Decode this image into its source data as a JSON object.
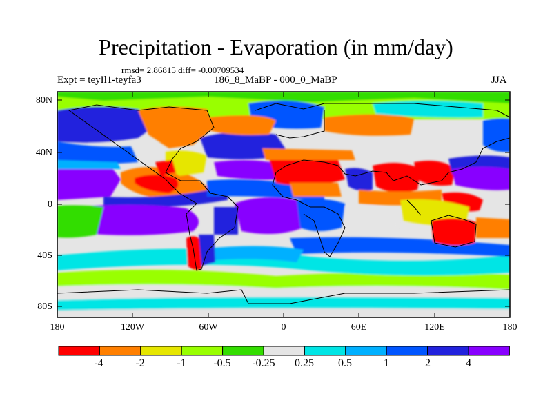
{
  "figure": {
    "title": "Precipitation - Evaporation (in mm/day)",
    "stats": "rmsd= 2.86815 diff= -0.00709534",
    "experiment": "Expt = teyIl1-teyfa3",
    "period": "186_8_MaBP - 000_0_MaBP",
    "season": "JJA"
  },
  "map": {
    "y_axis": {
      "labels": [
        "80N",
        "40N",
        "0",
        "40S",
        "80S"
      ]
    },
    "x_axis": {
      "labels": [
        "180",
        "120W",
        "60W",
        "0",
        "60E",
        "120E",
        "180"
      ]
    }
  },
  "colorbar": {
    "colors": [
      "#ff0000",
      "#ff7f00",
      "#e6e600",
      "#99ff00",
      "#33dd00",
      "#e5e5e5",
      "#00e5e5",
      "#00b0ff",
      "#0055ff",
      "#2222dd",
      "#8800ff"
    ],
    "labels": [
      "-4",
      "-2",
      "-1",
      "-0.5",
      "-0.25",
      "0.25",
      "0.5",
      "1",
      "2",
      "4"
    ]
  }
}
